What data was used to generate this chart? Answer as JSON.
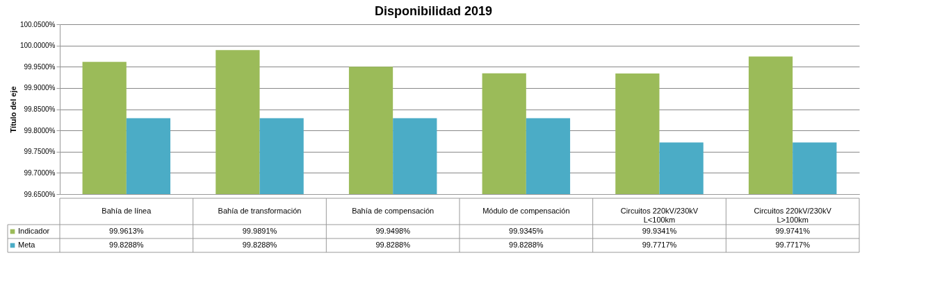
{
  "chart_data": {
    "type": "bar",
    "title": "Disponibilidad 2019",
    "ylabel": "Título del eje",
    "categories": [
      "Bahía de línea",
      "Bahía de transformación",
      "Bahía de compensación",
      "Módulo de compensación",
      "Circuitos 220kV/230kV L<100km",
      "Circuitos 220kV/230kV L>100km"
    ],
    "series": [
      {
        "name": "Indicador",
        "color": "#9bbb59",
        "values": [
          99.9613,
          99.9891,
          99.9498,
          99.9345,
          99.9341,
          99.9741
        ],
        "value_labels": [
          "99.9613%",
          "99.9891%",
          "99.9498%",
          "99.9345%",
          "99.9341%",
          "99.9741%"
        ]
      },
      {
        "name": "Meta",
        "color": "#4bacc6",
        "values": [
          99.8288,
          99.8288,
          99.8288,
          99.8288,
          99.7717,
          99.7717
        ],
        "value_labels": [
          "99.8288%",
          "99.8288%",
          "99.8288%",
          "99.8288%",
          "99.7717%",
          "99.7717%"
        ]
      }
    ],
    "ylim": [
      99.65,
      100.05
    ],
    "yticks": [
      {
        "value": 99.65,
        "label": "99.6500%"
      },
      {
        "value": 99.7,
        "label": "99.7000%"
      },
      {
        "value": 99.75,
        "label": "99.7500%"
      },
      {
        "value": 99.8,
        "label": "99.8000%"
      },
      {
        "value": 99.85,
        "label": "99.8500%"
      },
      {
        "value": 99.9,
        "label": "99.9000%"
      },
      {
        "value": 99.95,
        "label": "99.9500%"
      },
      {
        "value": 100.0,
        "label": "100.0000%"
      },
      {
        "value": 100.05,
        "label": "100.0500%"
      }
    ],
    "grid": "y",
    "legend": "bottom"
  }
}
